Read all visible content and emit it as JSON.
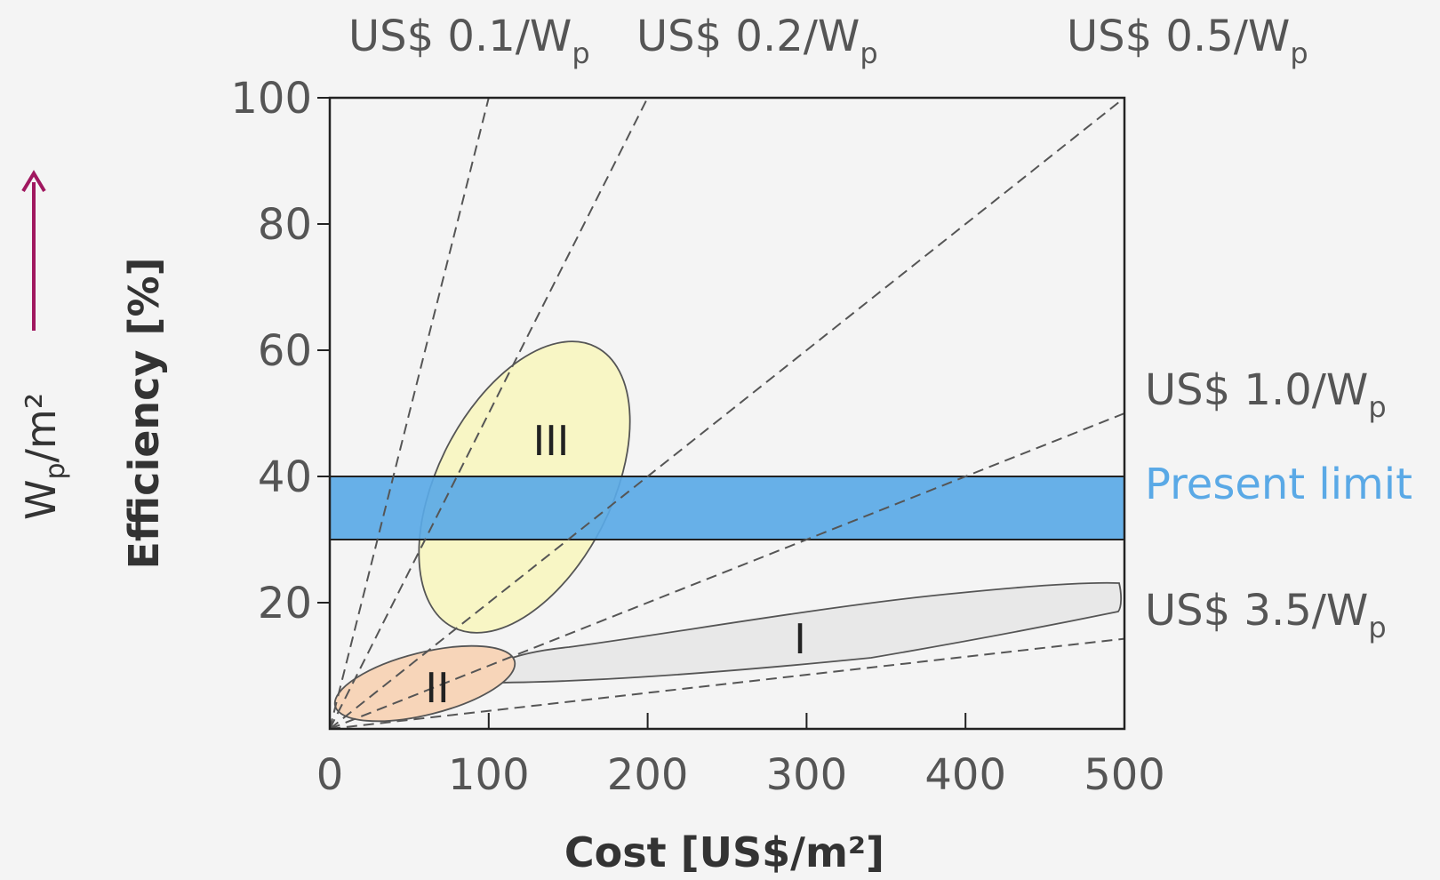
{
  "chart_data": {
    "type": "scatter",
    "title": "",
    "xlabel": "Cost [US$/m²]",
    "ylabel": "Efficiency  [%]",
    "secondary_ylabel": "Wp/m²",
    "xlim": [
      0,
      500
    ],
    "ylim": [
      0,
      100
    ],
    "x_ticks": [
      "0",
      "100",
      "200",
      "300",
      "400",
      "500"
    ],
    "y_ticks": [
      "20",
      "40",
      "60",
      "80",
      "100"
    ],
    "grid": false,
    "cost_lines": [
      {
        "label_main": "US$ 0.1/W",
        "label_sub": "p",
        "cost_per_wp": 0.1
      },
      {
        "label_main": "US$ 0.2/W",
        "label_sub": "p",
        "cost_per_wp": 0.2
      },
      {
        "label_main": "US$ 0.5/W",
        "label_sub": "p",
        "cost_per_wp": 0.5
      },
      {
        "label_main": "US$ 1.0/W",
        "label_sub": "p",
        "cost_per_wp": 1.0
      },
      {
        "label_main": "US$ 3.5/W",
        "label_sub": "p",
        "cost_per_wp": 3.5
      }
    ],
    "band": {
      "label": "Present limit",
      "y_from": 30,
      "y_to": 40,
      "color": "#5aa9e6"
    },
    "regions": [
      {
        "label": "I",
        "color": "#e8e8e8",
        "x_range": [
          95,
          500
        ],
        "y_range": [
          8,
          23
        ]
      },
      {
        "label": "II",
        "color": "#f7d5b9",
        "x_range": [
          20,
          118
        ],
        "y_range": [
          1,
          13
        ]
      },
      {
        "label": "III",
        "color": "#f8f6c2",
        "x_range": [
          54,
          195
        ],
        "y_range": [
          16,
          60
        ]
      }
    ]
  },
  "colors": {
    "arrow": "#a0175f",
    "band": "#5aa9e6",
    "dashed": "#555555"
  }
}
